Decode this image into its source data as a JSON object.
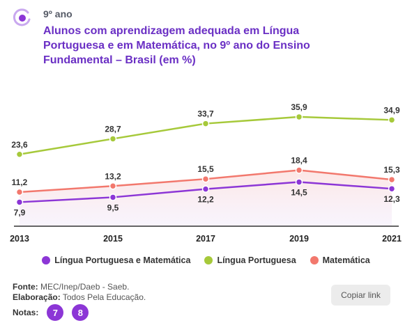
{
  "header": {
    "kicker": "9º ano",
    "title": "Alunos com aprendizagem adequada em Língua Portuguesa e em Matemática, no 9º ano do Ensino Fundamental – Brasil (em %)"
  },
  "legend": [
    {
      "label": "Língua Portuguesa e Matemática",
      "color": "#8c36d6"
    },
    {
      "label": "Língua Portuguesa",
      "color": "#a6c93a"
    },
    {
      "label": "Matemática",
      "color": "#f2786d"
    }
  ],
  "chart_data": {
    "type": "line",
    "x": [
      "2013",
      "2015",
      "2017",
      "2019",
      "2021"
    ],
    "series": [
      {
        "name": "Língua Portuguesa",
        "color": "#a6c93a",
        "values": [
          23.6,
          28.7,
          33.7,
          35.9,
          34.9
        ],
        "labels": [
          "23,6",
          "28,7",
          "33,7",
          "35,9",
          "34,9"
        ]
      },
      {
        "name": "Matemática",
        "color": "#f2786d",
        "values": [
          11.2,
          13.2,
          15.5,
          18.4,
          15.3
        ],
        "labels": [
          "11,2",
          "13,2",
          "15,5",
          "18,4",
          "15,3"
        ]
      },
      {
        "name": "Língua Portuguesa e Matemática",
        "color": "#8c36d6",
        "values": [
          7.9,
          9.5,
          12.2,
          14.5,
          12.3
        ],
        "labels": [
          "7,9",
          "9,5",
          "12,2",
          "14,5",
          "12,3"
        ]
      }
    ],
    "ylim": [
      0,
      40
    ],
    "legend_position": "bottom",
    "grid": false
  },
  "footer": {
    "fonte_label": "Fonte:",
    "fonte_value": "MEC/Inep/Daeb - Saeb.",
    "elaboracao_label": "Elaboração:",
    "elaboracao_value": "Todos Pela Educação.",
    "notas_label": "Notas:",
    "notes": [
      "7",
      "8"
    ]
  },
  "copy_button": "Copiar link"
}
